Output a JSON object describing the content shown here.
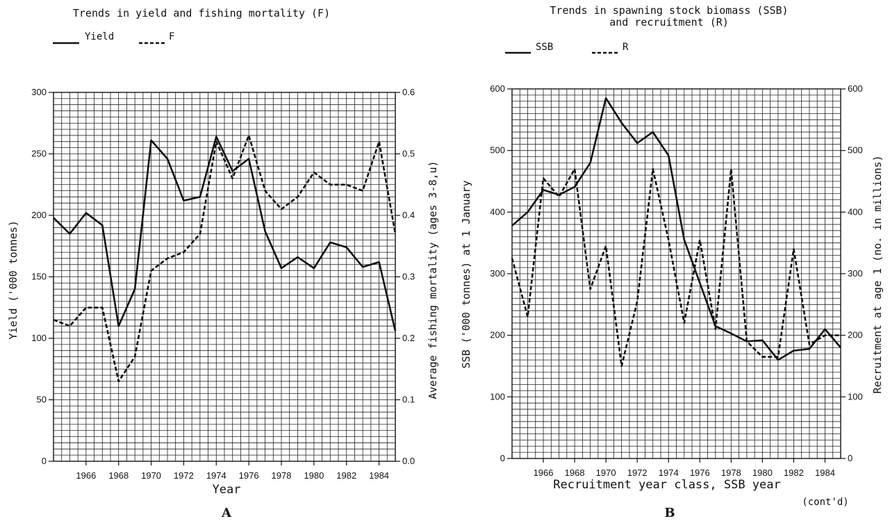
{
  "chart_data": [
    {
      "type": "line",
      "panel": "A",
      "title": "Trends in yield and fishing mortality (F)",
      "xlabel": "Year",
      "ylabel": "Yield ('000 tonnes)",
      "y2label": "Average fishing mortality (ages 3-8,u)",
      "xlim": [
        1964,
        1985
      ],
      "ylim": [
        0,
        300
      ],
      "y2lim": [
        0.0,
        0.6
      ],
      "xticks": [
        "1966",
        "1968",
        "1970",
        "1972",
        "1974",
        "1976",
        "1978",
        "1980",
        "1982",
        "1984"
      ],
      "yticks": [
        "0",
        "50",
        "100",
        "150",
        "200",
        "250",
        "300"
      ],
      "y2ticks": [
        "0.0",
        "0.1",
        "0.2",
        "0.3",
        "0.4",
        "0.5",
        "0.6"
      ],
      "grid": true,
      "legend": [
        {
          "label": "Yield",
          "style": "solid"
        },
        {
          "label": "F",
          "style": "dashed"
        }
      ],
      "series": [
        {
          "name": "Yield",
          "axis": "left",
          "style": "solid",
          "x": [
            1964,
            1965,
            1966,
            1967,
            1968,
            1969,
            1970,
            1971,
            1972,
            1973,
            1974,
            1975,
            1976,
            1977,
            1978,
            1979,
            1980,
            1981,
            1982,
            1983,
            1984,
            1985
          ],
          "values": [
            198,
            185,
            202,
            192,
            110,
            140,
            261,
            246,
            212,
            215,
            264,
            236,
            246,
            187,
            157,
            166,
            157,
            178,
            174,
            158,
            162,
            106
          ]
        },
        {
          "name": "F",
          "axis": "right",
          "style": "dashed",
          "x": [
            1964,
            1965,
            1966,
            1967,
            1968,
            1969,
            1970,
            1971,
            1972,
            1973,
            1974,
            1975,
            1976,
            1977,
            1978,
            1979,
            1980,
            1981,
            1982,
            1983,
            1984,
            1985
          ],
          "values": [
            0.23,
            0.22,
            0.25,
            0.25,
            0.13,
            0.17,
            0.31,
            0.33,
            0.34,
            0.37,
            0.52,
            0.46,
            0.53,
            0.44,
            0.41,
            0.43,
            0.47,
            0.45,
            0.45,
            0.44,
            0.52,
            0.37
          ]
        }
      ]
    },
    {
      "type": "line",
      "panel": "B",
      "title": "Trends in spawning stock biomass (SSB)",
      "title2": "and recruitment (R)",
      "xlabel": "Recruitment year class, SSB year",
      "ylabel": "SSB ('000 tonnes) at 1 January",
      "y2label": "Recruitment at age 1 (no. in millions)",
      "xlim": [
        1964,
        1985
      ],
      "ylim": [
        0,
        600
      ],
      "y2lim": [
        0,
        600
      ],
      "xticks": [
        "1966",
        "1968",
        "1970",
        "1972",
        "1974",
        "1976",
        "1978",
        "1980",
        "1982",
        "1984"
      ],
      "yticks": [
        "0",
        "100",
        "200",
        "300",
        "400",
        "500",
        "600"
      ],
      "y2ticks": [
        "0",
        "100",
        "200",
        "300",
        "400",
        "500",
        "600"
      ],
      "grid": true,
      "legend": [
        {
          "label": "SSB",
          "style": "solid"
        },
        {
          "label": "R",
          "style": "dashed"
        }
      ],
      "series": [
        {
          "name": "SSB",
          "axis": "left",
          "style": "solid",
          "x": [
            1964,
            1965,
            1966,
            1967,
            1968,
            1969,
            1970,
            1971,
            1972,
            1973,
            1974,
            1975,
            1976,
            1977,
            1978,
            1979,
            1980,
            1981,
            1982,
            1983,
            1984,
            1985
          ],
          "values": [
            378,
            400,
            436,
            428,
            441,
            480,
            585,
            545,
            512,
            530,
            492,
            355,
            285,
            215,
            203,
            190,
            192,
            160,
            175,
            178,
            210,
            180
          ]
        },
        {
          "name": "R",
          "axis": "right",
          "style": "dashed",
          "x": [
            1964,
            1965,
            1966,
            1967,
            1968,
            1969,
            1970,
            1971,
            1972,
            1973,
            1974,
            1975,
            1976,
            1977,
            1978,
            1979,
            1980,
            1981,
            1982,
            1983,
            1984,
            1985
          ],
          "values": [
            325,
            230,
            455,
            425,
            470,
            275,
            345,
            150,
            255,
            470,
            355,
            220,
            355,
            210,
            470,
            190,
            165,
            165,
            340,
            185,
            200,
            200
          ]
        }
      ]
    }
  ],
  "panel_a_letter": "A",
  "panel_b_letter": "B",
  "note": "(cont'd)"
}
